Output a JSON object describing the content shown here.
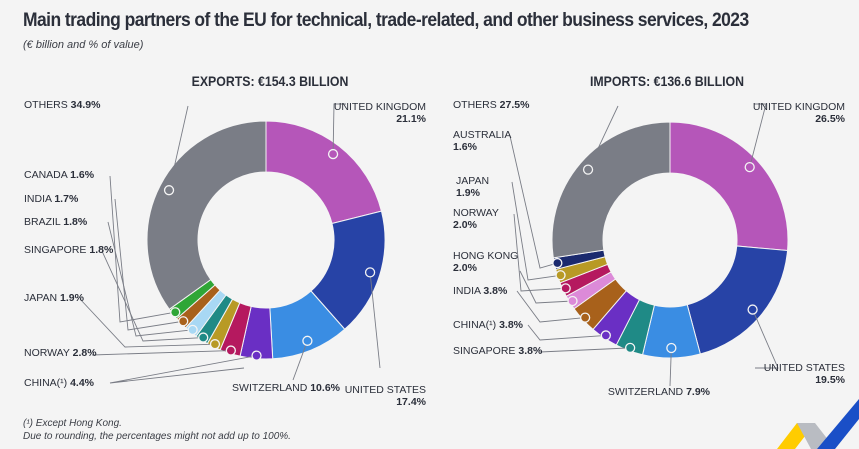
{
  "title": "Main trading partners of the EU for technical, trade-related, and other business services, 2023",
  "subtitle": "(€ billion and % of value)",
  "footnotes": [
    "(¹) Except Hong Kong.",
    "Due to rounding, the percentages might not add up to 100%."
  ],
  "logo": "eurostat-logo",
  "chart_data": [
    {
      "type": "pie",
      "variant": "donut",
      "title": "EXPORTS: €154.3 BILLION",
      "unit": "%",
      "start": "12 o'clock, clockwise",
      "slices": [
        {
          "label": "UNITED KINGDOM",
          "value": 21.1,
          "display": "21.1%",
          "color": "#b556b9"
        },
        {
          "label": "UNITED STATES",
          "value": 17.4,
          "display": "17.4%",
          "color": "#2743a6"
        },
        {
          "label": "SWITZERLAND",
          "value": 10.6,
          "display": "10.6%",
          "color": "#3a8de3"
        },
        {
          "label": "CHINA(¹)",
          "value": 4.4,
          "display": "4.4%",
          "color": "#6a2fc4"
        },
        {
          "label": "NORWAY",
          "value": 2.8,
          "display": "2.8%",
          "color": "#b5195f"
        },
        {
          "label": "JAPAN",
          "value": 1.9,
          "display": "1.9%",
          "color": "#b89a25"
        },
        {
          "label": "SINGAPORE",
          "value": 1.8,
          "display": "1.8%",
          "color": "#1f8a86"
        },
        {
          "label": "BRAZIL",
          "value": 1.8,
          "display": "1.8%",
          "color": "#a8d8f4"
        },
        {
          "label": "INDIA",
          "value": 1.7,
          "display": "1.7%",
          "color": "#a8611b"
        },
        {
          "label": "CANADA",
          "value": 1.6,
          "display": "1.6%",
          "color": "#2fa636"
        },
        {
          "label": "OTHERS",
          "value": 34.9,
          "display": "34.9%",
          "color": "#7a7d86"
        }
      ]
    },
    {
      "type": "pie",
      "variant": "donut",
      "title": "IMPORTS: €136.6 BILLION",
      "unit": "%",
      "start": "12 o'clock, clockwise",
      "slices": [
        {
          "label": "UNITED KINGDOM",
          "value": 26.5,
          "display": "26.5%",
          "color": "#b556b9"
        },
        {
          "label": "UNITED STATES",
          "value": 19.5,
          "display": "19.5%",
          "color": "#2743a6"
        },
        {
          "label": "SWITZERLAND",
          "value": 7.9,
          "display": "7.9%",
          "color": "#3a8de3"
        },
        {
          "label": "SINGAPORE",
          "value": 3.8,
          "display": "3.8%",
          "color": "#1f8a86"
        },
        {
          "label": "CHINA(¹)",
          "value": 3.8,
          "display": "3.8%",
          "color": "#6a2fc4"
        },
        {
          "label": "INDIA",
          "value": 3.8,
          "display": "3.8%",
          "color": "#a8611b"
        },
        {
          "label": "HONG KONG",
          "value": 2.0,
          "display": "2.0%",
          "color": "#dc8ad8"
        },
        {
          "label": "NORWAY",
          "value": 2.0,
          "display": "2.0%",
          "color": "#b5195f"
        },
        {
          "label": "JAPAN",
          "value": 1.9,
          "display": "1.9%",
          "color": "#b89a25"
        },
        {
          "label": "AUSTRALIA",
          "value": 1.6,
          "display": "1.6%",
          "color": "#1b2a6e"
        },
        {
          "label": "OTHERS",
          "value": 27.5,
          "display": "27.5%",
          "color": "#7a7d86"
        }
      ]
    }
  ]
}
